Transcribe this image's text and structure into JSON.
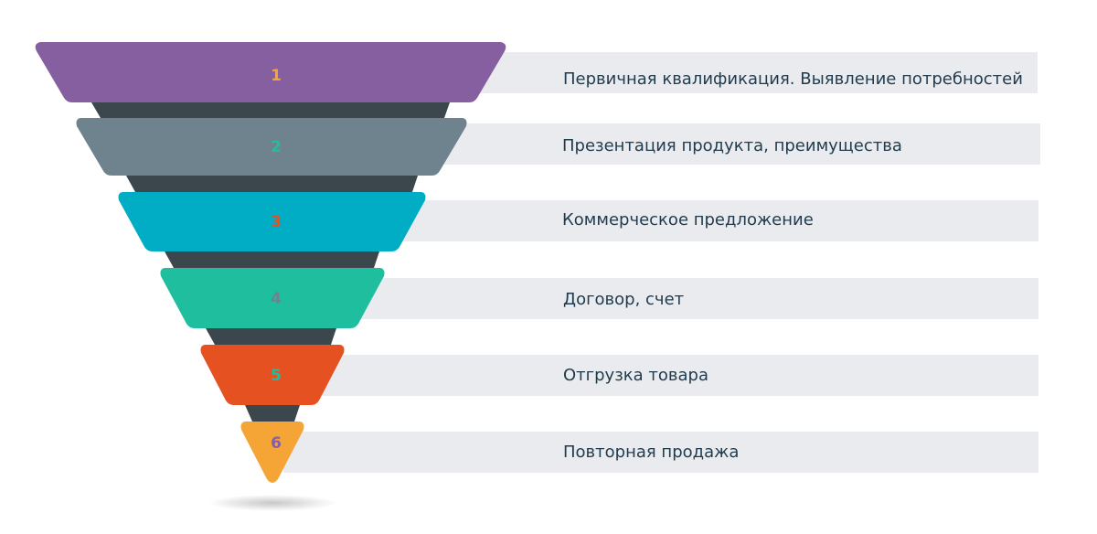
{
  "stages": [
    {
      "number": "1",
      "label": "Первичная квалификация. Выявление потребностей",
      "color": "#855f9f",
      "number_color": "#f4a535"
    },
    {
      "number": "2",
      "label": "Презентация продукта, преимущества",
      "color": "#6e838d",
      "number_color": "#1fbe9e"
    },
    {
      "number": "3",
      "label": "Коммерческое предложение",
      "color": "#00adc5",
      "number_color": "#e65121"
    },
    {
      "number": "4",
      "label": "Договор, счет",
      "color": "#1fbe9e",
      "number_color": "#6e838d"
    },
    {
      "number": "5",
      "label": "Отгрузка товара",
      "color": "#e65121",
      "number_color": "#1fbe9e"
    },
    {
      "number": "6",
      "label": "Повторная продажа",
      "color": "#f4a535",
      "number_color": "#855f9f"
    }
  ],
  "colors": {
    "connector": "#3b474d",
    "label_band": "#eaebee",
    "label_text": "#1f3b4d"
  }
}
